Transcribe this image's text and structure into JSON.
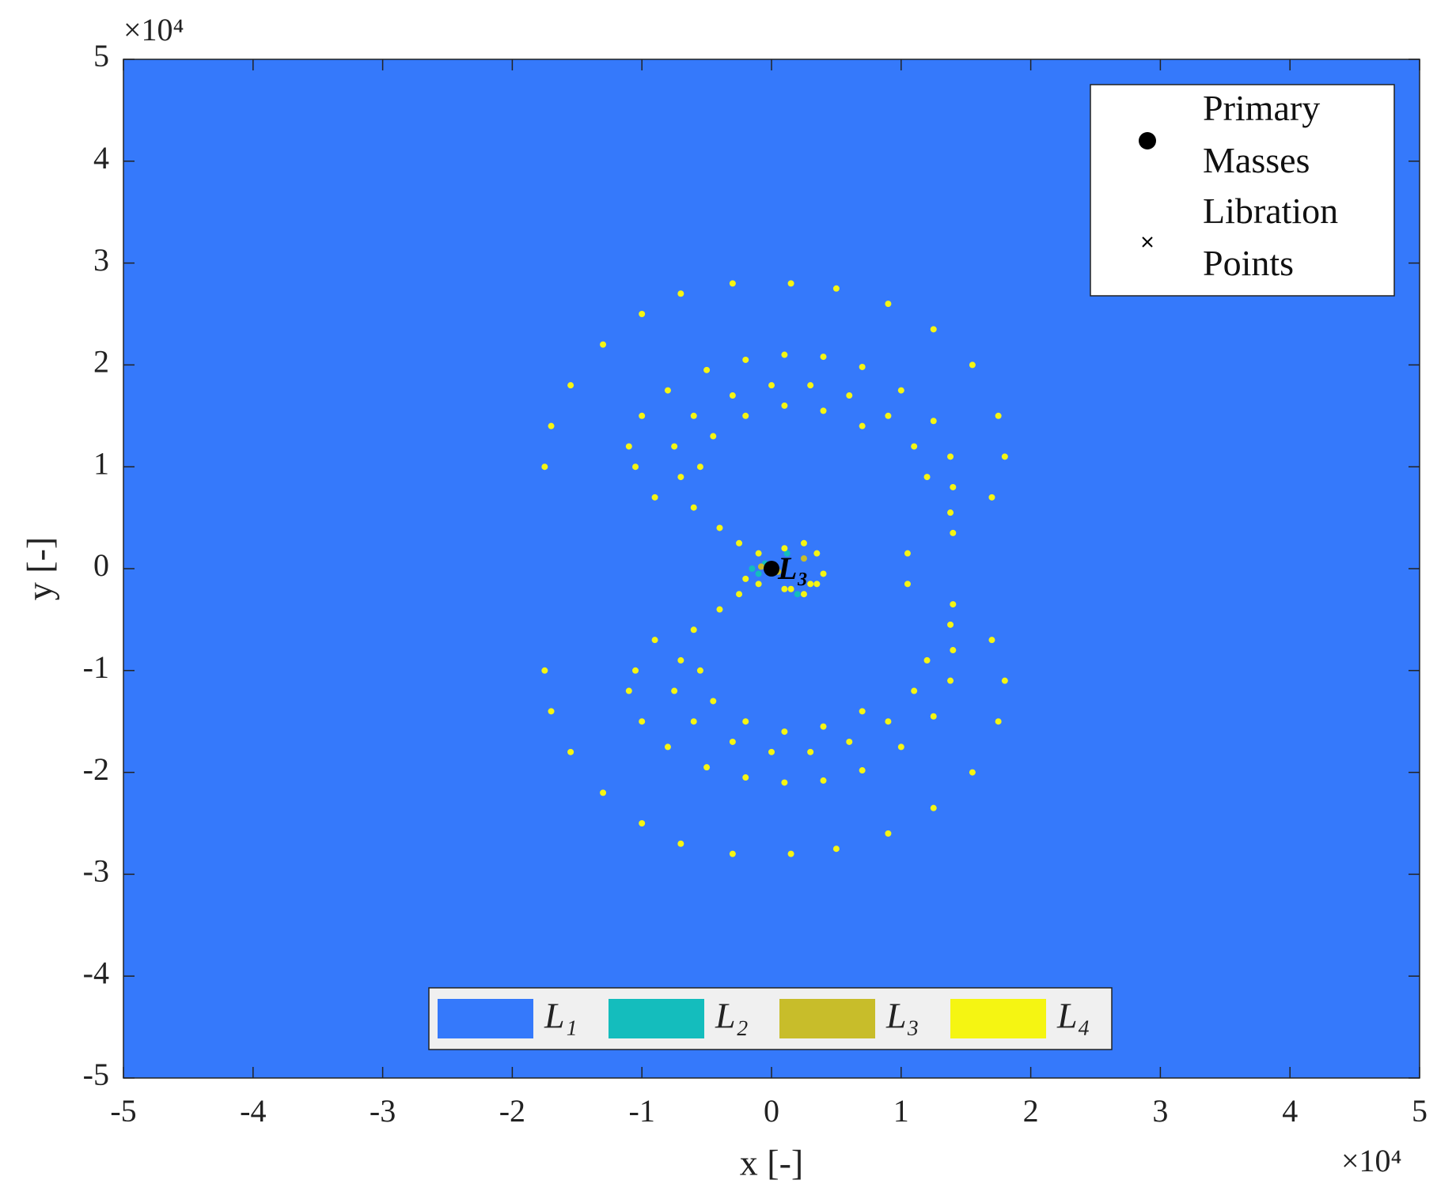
{
  "chart_data": {
    "type": "scatter",
    "xlabel": "x [-]",
    "ylabel": "y [-]",
    "x_multiplier": "×10⁴",
    "y_multiplier": "×10⁴",
    "xlim": [
      -50000,
      50000
    ],
    "ylim": [
      -50000,
      50000
    ],
    "xticks": [
      {
        "value": -50000,
        "label": "-5"
      },
      {
        "value": -40000,
        "label": "-4"
      },
      {
        "value": -30000,
        "label": "-3"
      },
      {
        "value": -20000,
        "label": "-2"
      },
      {
        "value": -10000,
        "label": "-1"
      },
      0,
      {
        "value": 10000,
        "label": "1"
      },
      {
        "value": 20000,
        "label": "2"
      },
      {
        "value": 30000,
        "label": "3"
      },
      {
        "value": 40000,
        "label": "4"
      },
      {
        "value": 50000,
        "label": "5"
      }
    ],
    "yticks": [
      {
        "value": -50000,
        "label": "-5"
      },
      {
        "value": -40000,
        "label": "-4"
      },
      {
        "value": -30000,
        "label": "-3"
      },
      {
        "value": -20000,
        "label": "-2"
      },
      {
        "value": -10000,
        "label": "-1"
      },
      0,
      {
        "value": 10000,
        "label": "1"
      },
      {
        "value": 20000,
        "label": "2"
      },
      {
        "value": 30000,
        "label": "3"
      },
      {
        "value": 40000,
        "label": "4"
      },
      {
        "value": 50000,
        "label": "5"
      }
    ],
    "series": [
      {
        "name": "L₁",
        "color": "#3579fb"
      },
      {
        "name": "L₂",
        "color": "#14bdbd",
        "x": [
          -1500,
          -500,
          -1000,
          2000,
          1200
        ],
        "y": [
          0,
          500,
          -500,
          -2500,
          1500
        ]
      },
      {
        "name": "L₃",
        "color": "#c8bd2a",
        "x": [
          -800,
          500,
          2500
        ],
        "y": [
          200,
          -300,
          1000
        ]
      },
      {
        "name": "L₄",
        "color": "#f5f512",
        "x": [
          -9000,
          -10500,
          -11000,
          -10000,
          -8000,
          -5000,
          -2000,
          1000,
          4000,
          7000,
          10000,
          12500,
          13800,
          14000,
          13800,
          -7000,
          -7500,
          -6000,
          -3000,
          0,
          3000,
          6000,
          9000,
          11000,
          12000,
          -5500,
          -4500,
          -2000,
          1000,
          4000,
          7000,
          -6000,
          -4000,
          -2500,
          -1000,
          1000,
          2500,
          3500,
          -17500,
          -17000,
          -15500,
          -13000,
          -10000,
          -7000,
          -3000,
          1500,
          5000,
          9000,
          12500,
          15500,
          17500,
          18000,
          17000,
          14000,
          10500,
          -9000,
          -10500,
          -11000,
          -10000,
          -8000,
          -5000,
          -2000,
          1000,
          4000,
          7000,
          10000,
          12500,
          13800,
          14000,
          13800,
          -7000,
          -7500,
          -6000,
          -3000,
          0,
          3000,
          6000,
          9000,
          11000,
          12000,
          -5500,
          -4500,
          -2000,
          1000,
          4000,
          7000,
          -6000,
          -4000,
          -2500,
          -1000,
          1000,
          2500,
          3500,
          -17500,
          -17000,
          -15500,
          -13000,
          -10000,
          -7000,
          -3000,
          1500,
          5000,
          9000,
          12500,
          15500,
          17500,
          18000,
          17000,
          14000,
          10500,
          3000,
          4000,
          -2000,
          1500
        ],
        "y": [
          7000,
          10000,
          12000,
          15000,
          17500,
          19500,
          20500,
          21000,
          20800,
          19800,
          17500,
          14500,
          11000,
          8000,
          5500,
          9000,
          12000,
          15000,
          17000,
          18000,
          18000,
          17000,
          15000,
          12000,
          9000,
          10000,
          13000,
          15000,
          16000,
          15500,
          14000,
          6000,
          4000,
          2500,
          1500,
          2000,
          2500,
          1500,
          10000,
          14000,
          18000,
          22000,
          25000,
          27000,
          28000,
          28000,
          27500,
          26000,
          23500,
          20000,
          15000,
          11000,
          7000,
          3500,
          1500,
          -7000,
          -10000,
          -12000,
          -15000,
          -17500,
          -19500,
          -20500,
          -21000,
          -20800,
          -19800,
          -17500,
          -14500,
          -11000,
          -8000,
          -5500,
          -9000,
          -12000,
          -15000,
          -17000,
          -18000,
          -18000,
          -17000,
          -15000,
          -12000,
          -9000,
          -10000,
          -13000,
          -15000,
          -16000,
          -15500,
          -14000,
          -6000,
          -4000,
          -2500,
          -1500,
          -2000,
          -2500,
          -1500,
          -10000,
          -14000,
          -18000,
          -22000,
          -25000,
          -27000,
          -28000,
          -28000,
          -27500,
          -26000,
          -23500,
          -20000,
          -15000,
          -11000,
          -7000,
          -3500,
          -1500,
          -1500,
          -500,
          -1000,
          -2000
        ]
      }
    ],
    "primary_masses": {
      "name": "Primary Masses",
      "color": "#000000",
      "x": [
        0
      ],
      "y": [
        0
      ]
    },
    "libration_points": {
      "name": "Libration Points",
      "color": "#000000",
      "x": [
        0
      ],
      "y": [
        0
      ],
      "labels": [
        "L₃"
      ]
    }
  }
}
